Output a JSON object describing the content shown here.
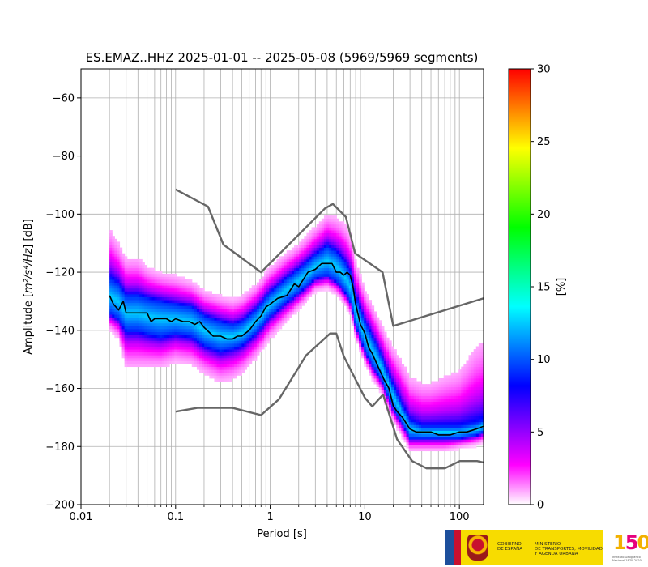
{
  "chart_data": {
    "type": "heatmap",
    "title": "ES.EMAZ..HHZ   2025-01-01 -- 2025-05-08  (5969/5969 segments)",
    "xlabel": "Period [s]",
    "ylabel_main": "Amplitude [",
    "ylabel_math": "m²/s⁴/Hz",
    "ylabel_tail": "] [dB]",
    "x_scale": "log",
    "xlim": [
      0.01,
      180
    ],
    "ylim": [
      -200,
      -50
    ],
    "x_ticks": [
      {
        "value": 0.01,
        "label": "0.01"
      },
      {
        "value": 0.1,
        "label": "0.1"
      },
      {
        "value": 1,
        "label": "1"
      },
      {
        "value": 10,
        "label": "10"
      },
      {
        "value": 100,
        "label": "100"
      }
    ],
    "y_ticks": [
      {
        "value": -60,
        "label": "−60"
      },
      {
        "value": -80,
        "label": "−80"
      },
      {
        "value": -100,
        "label": "−100"
      },
      {
        "value": -120,
        "label": "−120"
      },
      {
        "value": -140,
        "label": "−140"
      },
      {
        "value": -160,
        "label": "−160"
      },
      {
        "value": -180,
        "label": "−180"
      },
      {
        "value": -200,
        "label": "−200"
      }
    ],
    "grid": true,
    "colorbar": {
      "label": "[%]",
      "range": [
        0,
        30
      ],
      "ticks": [
        {
          "value": 0,
          "label": "0"
        },
        {
          "value": 5,
          "label": "5"
        },
        {
          "value": 10,
          "label": "10"
        },
        {
          "value": 15,
          "label": "15"
        },
        {
          "value": 20,
          "label": "20"
        },
        {
          "value": 25,
          "label": "25"
        },
        {
          "value": 30,
          "label": "30"
        }
      ],
      "colormap": [
        "#ffffff",
        "#ff00ff",
        "#8000ff",
        "#0000ff",
        "#0080ff",
        "#00ffff",
        "#00ff80",
        "#00ff00",
        "#80ff00",
        "#ffff00",
        "#ff8000",
        "#ff0000"
      ]
    },
    "density_band": {
      "periods": [
        0.02,
        0.025,
        0.03,
        0.04,
        0.05,
        0.07,
        0.1,
        0.15,
        0.2,
        0.3,
        0.4,
        0.5,
        0.7,
        1,
        1.5,
        2,
        3,
        4,
        5,
        6,
        7,
        8,
        10,
        12,
        15,
        20,
        25,
        30,
        40,
        50,
        70,
        100,
        150,
        180
      ],
      "center": [
        -128,
        -130,
        -134,
        -134,
        -135,
        -136,
        -136,
        -137,
        -140,
        -142,
        -142,
        -141,
        -137,
        -131,
        -126,
        -123,
        -118,
        -116,
        -118,
        -121,
        -125,
        -133,
        -142,
        -147,
        -153,
        -163,
        -169,
        -174,
        -175,
        -175,
        -175,
        -175,
        -174,
        -173
      ],
      "core_halfwidth": [
        6,
        6,
        6,
        6,
        6,
        6,
        5,
        5,
        5,
        5,
        4,
        4,
        4,
        4,
        4,
        4,
        4,
        5,
        5,
        5,
        5,
        5,
        5,
        5,
        4,
        4,
        3,
        3,
        2,
        2,
        2,
        2,
        2,
        2
      ],
      "halo_up": [
        16,
        13,
        12,
        12,
        10,
        9,
        9,
        8,
        8,
        8,
        8,
        8,
        8,
        8,
        8,
        8,
        9,
        10,
        11,
        12,
        12,
        11,
        10,
        10,
        10,
        12,
        14,
        14,
        14,
        14,
        16,
        18,
        25,
        26
      ],
      "halo_down": [
        5,
        6,
        12,
        12,
        11,
        10,
        9,
        9,
        9,
        10,
        10,
        9,
        8,
        7,
        6,
        5,
        4,
        4,
        4,
        4,
        4,
        4,
        4,
        4,
        4,
        4,
        4,
        4,
        4,
        4,
        4,
        3,
        3,
        3
      ]
    },
    "series": [
      {
        "role": "mode",
        "color": "#000000",
        "x": [
          0.02,
          0.022,
          0.025,
          0.028,
          0.03,
          0.035,
          0.04,
          0.045,
          0.05,
          0.055,
          0.06,
          0.07,
          0.08,
          0.09,
          0.1,
          0.12,
          0.14,
          0.16,
          0.18,
          0.2,
          0.25,
          0.3,
          0.35,
          0.4,
          0.45,
          0.5,
          0.6,
          0.7,
          0.8,
          0.9,
          1,
          1.2,
          1.5,
          1.8,
          2,
          2.5,
          3,
          3.5,
          4,
          4.5,
          5,
          5.5,
          6,
          6.5,
          7,
          7.5,
          8,
          9,
          10,
          11,
          12,
          14,
          16,
          18,
          20,
          22,
          25,
          30,
          35,
          40,
          50,
          60,
          70,
          80,
          100,
          120,
          150,
          180
        ],
        "y": [
          -128,
          -131,
          -133,
          -130,
          -134,
          -134,
          -134,
          -134,
          -134,
          -137,
          -136,
          -136,
          -136,
          -137,
          -136,
          -137,
          -137,
          -138,
          -137,
          -139,
          -142,
          -142,
          -143,
          -143,
          -142,
          -142,
          -140,
          -137,
          -135,
          -132,
          -131,
          -129,
          -128,
          -124,
          -125,
          -120,
          -119,
          -117,
          -117,
          -117,
          -120,
          -120,
          -121,
          -120,
          -121,
          -125,
          -131,
          -138,
          -141,
          -146,
          -148,
          -153,
          -157,
          -160,
          -166,
          -168,
          -170,
          -174,
          -175,
          -175,
          -175,
          -176,
          -176,
          -176,
          -175,
          -175,
          -174,
          -173
        ]
      },
      {
        "role": "noise-model-high",
        "color": "#666666",
        "x": [
          0.1,
          0.22,
          0.32,
          0.8,
          3.8,
          4.6,
          6.3,
          7.9,
          15.4,
          20,
          180
        ],
        "y": [
          -91.5,
          -97.4,
          -110.5,
          -120,
          -98,
          -96.5,
          -101,
          -113.5,
          -120,
          -138.5,
          -129
        ]
      },
      {
        "role": "noise-model-low",
        "color": "#666666",
        "x": [
          0.1,
          0.17,
          0.4,
          0.8,
          1.24,
          2.4,
          4.3,
          5.0,
          6.0,
          10,
          12,
          15.6,
          21.9,
          31.6,
          45,
          70,
          101,
          154,
          180
        ],
        "y": [
          -168,
          -166.7,
          -166.7,
          -169.2,
          -163.7,
          -148.6,
          -141.1,
          -141.1,
          -149,
          -163.2,
          -166.2,
          -162.1,
          -177.5,
          -185,
          -187.5,
          -187.5,
          -185,
          -185,
          -185.5
        ]
      }
    ]
  }
}
